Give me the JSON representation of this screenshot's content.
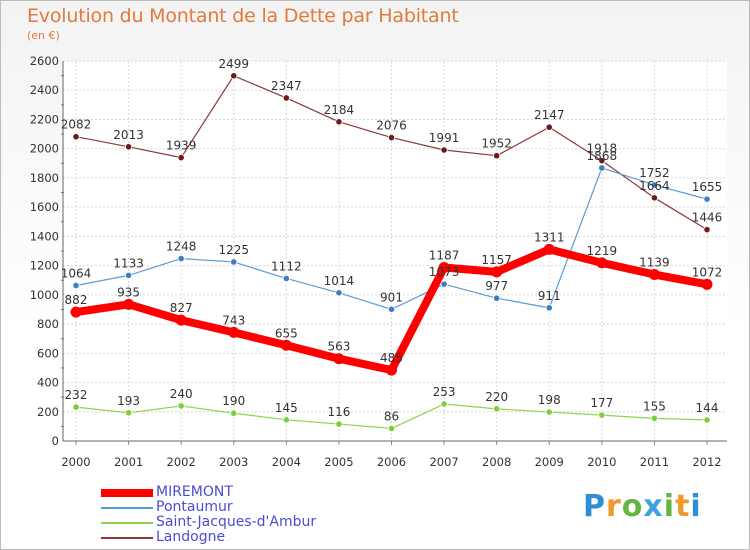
{
  "title": "Evolution du Montant de la Dette par Habitant",
  "subtitle": "(en €)",
  "logo_text": "Proxiti",
  "chart_data": {
    "type": "line",
    "title": "Evolution du Montant de la Dette par Habitant",
    "subtitle": "(en €)",
    "xlabel": "",
    "ylabel": "",
    "x": [
      "2000",
      "2001",
      "2002",
      "2003",
      "2004",
      "2005",
      "2006",
      "2007",
      "2008",
      "2009",
      "2010",
      "2011",
      "2012"
    ],
    "ylim": [
      0,
      2600
    ],
    "yticks": [
      "0",
      "200",
      "400",
      "600",
      "800",
      "1000",
      "1200",
      "1400",
      "1600",
      "1800",
      "2000",
      "2200",
      "2400",
      "2600"
    ],
    "grid": true,
    "legend_position": "bottom-left",
    "series": [
      {
        "name": "MIREMONT",
        "color": "#ff0000",
        "values": [
          882,
          935,
          827,
          743,
          655,
          563,
          485,
          1187,
          1157,
          1311,
          1219,
          1139,
          1072
        ]
      },
      {
        "name": "Pontaumur",
        "color": "#5b9bd5",
        "values": [
          1064,
          1133,
          1248,
          1225,
          1112,
          1014,
          901,
          1073,
          977,
          911,
          1868,
          1752,
          1655
        ]
      },
      {
        "name": "Saint-Jacques-d'Ambur",
        "color": "#8fd24a",
        "values": [
          232,
          193,
          240,
          190,
          145,
          116,
          86,
          253,
          220,
          198,
          177,
          155,
          144
        ]
      },
      {
        "name": "Landogne",
        "color": "#8b3a3a",
        "values": [
          2082,
          2013,
          1939,
          2499,
          2347,
          2184,
          2076,
          1991,
          1952,
          2147,
          1918,
          1664,
          1446
        ]
      }
    ]
  }
}
